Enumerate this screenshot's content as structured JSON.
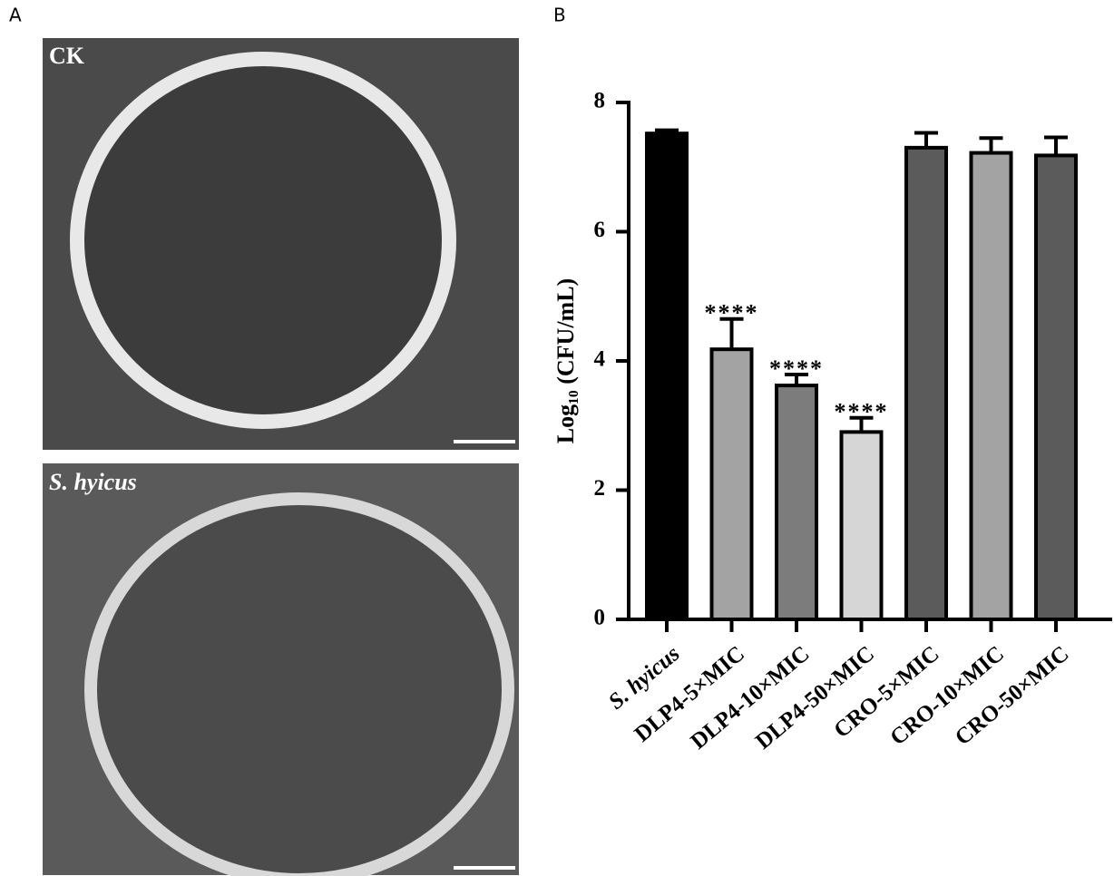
{
  "panel_labels": [
    "A",
    "B"
  ],
  "images": [
    {
      "label": "CK"
    },
    {
      "label": "S. hyicus"
    }
  ],
  "chart_data": {
    "type": "bar",
    "y_label": "Log₁₀ (CFU/mL)",
    "categories": [
      "S. hyicus",
      "DLP4-5×MIC",
      "DLP4-10×MIC",
      "DLP4-50×MIC",
      "CRO-5×MIC",
      "CRO-10×MIC",
      "CRO-50×MIC"
    ],
    "values": [
      7.52,
      4.18,
      3.62,
      2.9,
      7.3,
      7.22,
      7.18
    ],
    "errors": [
      0.05,
      0.47,
      0.17,
      0.22,
      0.23,
      0.23,
      0.28
    ],
    "colors": [
      "#000000",
      "#a3a3a3",
      "#7c7c7c",
      "#d6d6d6",
      "#5b5b5b",
      "#a3a3a3",
      "#5b5b5b"
    ],
    "significance": [
      null,
      "****",
      "****",
      "****",
      null,
      null,
      null
    ],
    "ylim": [
      0,
      8
    ],
    "yticks": [
      0,
      2,
      4,
      6,
      8
    ]
  }
}
